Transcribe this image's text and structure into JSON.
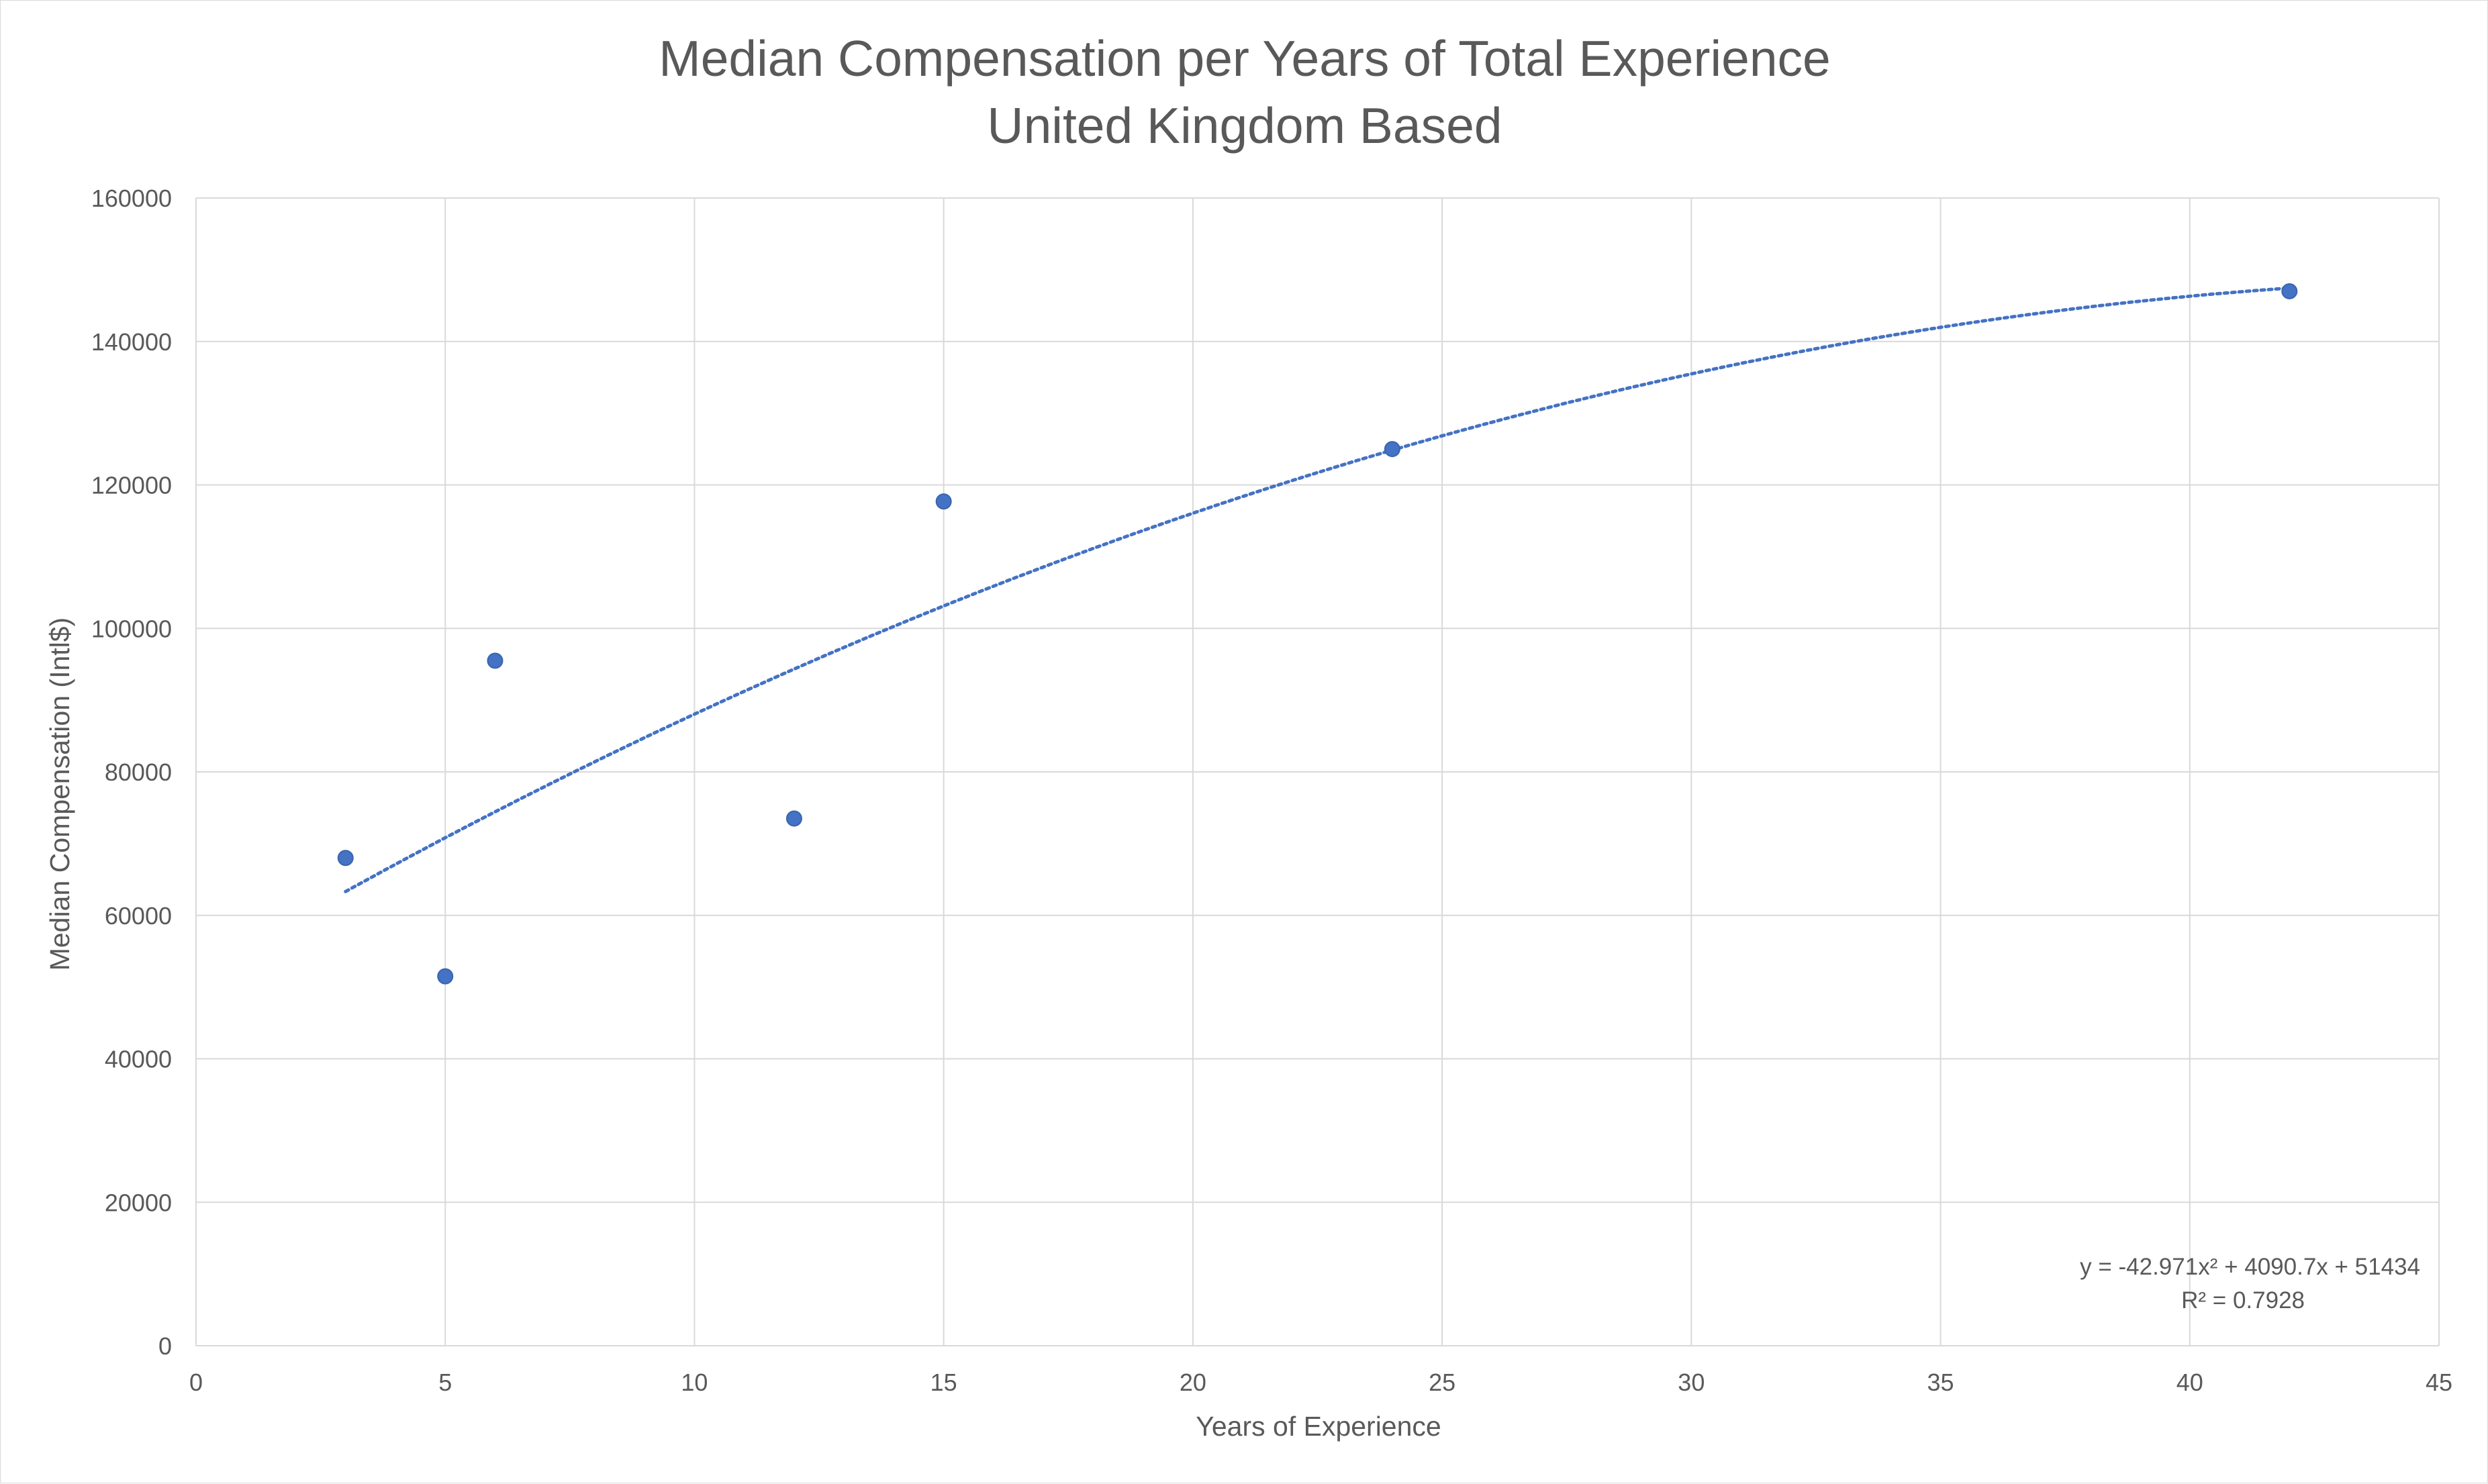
{
  "chart_data": {
    "type": "scatter",
    "title_line1": "Median Compensation per Years of Total Experience",
    "title_line2": "United Kingdom Based",
    "xlabel": "Years of Experience",
    "ylabel": "Median Compensation (Intl$)",
    "xlim": [
      0,
      45
    ],
    "ylim": [
      0,
      160000
    ],
    "x_ticks": [
      0,
      5,
      10,
      15,
      20,
      25,
      30,
      35,
      40,
      45
    ],
    "y_ticks": [
      0,
      20000,
      40000,
      60000,
      80000,
      100000,
      120000,
      140000,
      160000
    ],
    "grid": true,
    "legend": "none",
    "series": [
      {
        "x": [
          3,
          5,
          6,
          12,
          15,
          24,
          42
        ],
        "y": [
          68000,
          51500,
          95500,
          73500,
          117700,
          125000,
          147000
        ],
        "color": "#4472c4"
      }
    ],
    "trendline": {
      "type": "polynomial-2",
      "coefficients": [
        -42.971,
        4090.7,
        51434
      ],
      "x_range": [
        3,
        42
      ],
      "style": "dotted",
      "color": "#4472c4",
      "equation_text": "y = -42.971x² + 4090.7x + 51434",
      "r2_text": "R² = 0.7928"
    }
  }
}
